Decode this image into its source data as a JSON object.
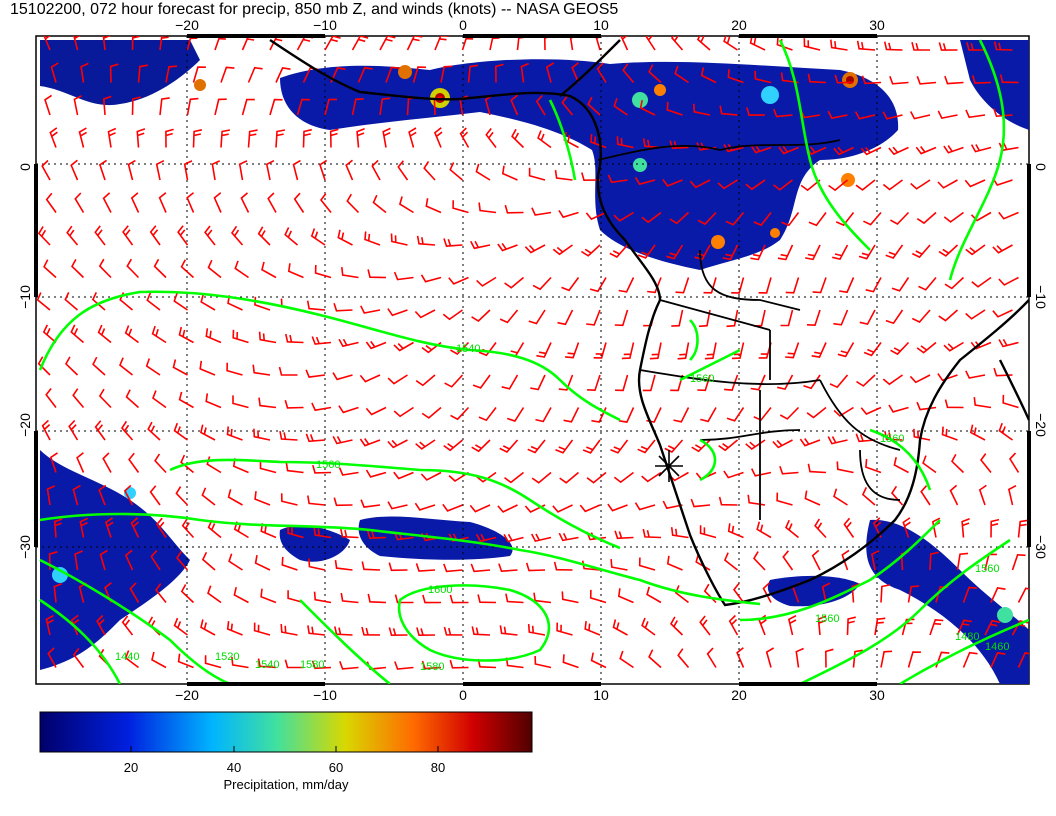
{
  "title": "15102200, 072 hour forecast for precip, 850 mb Z, and winds (knots) -- NASA GEOS5",
  "map": {
    "lon_ticks": [
      "−20",
      "−10",
      "0",
      "10",
      "20",
      "30"
    ],
    "lat_ticks": [
      "0",
      "−10",
      "−20",
      "−30"
    ],
    "contour_labels": [
      "1540",
      "1560",
      "1560",
      "1600",
      "1560",
      "1580",
      "1520",
      "1480",
      "1440",
      "1540",
      "1460",
      "1580",
      "1560",
      "1560"
    ],
    "marker_icon": "star-marker-icon",
    "colors": {
      "wind_barbs": "#ff0000",
      "height_contours": "#00ff00",
      "coastlines": "#000000"
    }
  },
  "colorbar": {
    "tick_labels": [
      "20",
      "40",
      "60",
      "80"
    ],
    "label": "Precipitation, mm/day",
    "colors": [
      "#00007a",
      "#0030ff",
      "#00c8ff",
      "#40e090",
      "#d0d000",
      "#ff6000",
      "#c00000",
      "#600000"
    ]
  }
}
